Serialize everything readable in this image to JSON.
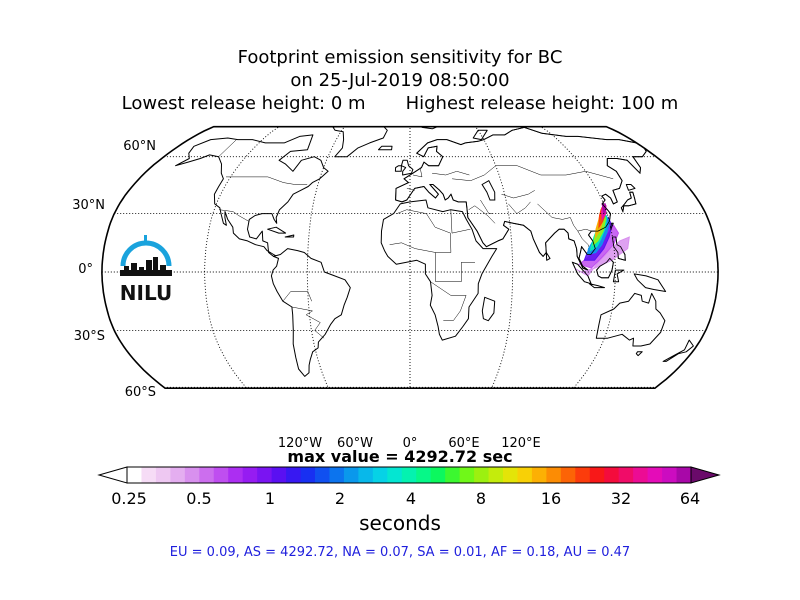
{
  "title": {
    "line1": "Footprint emission sensitivity for BC",
    "line2": "on 25-Jul-2019 08:50:00",
    "line3": "Lowest release height: 0 m       Highest release height: 100 m"
  },
  "map": {
    "projection": "robinson",
    "lat_labels": [
      "60°N",
      "30°N",
      "0°",
      "30°S",
      "60°S"
    ],
    "lon_labels": [
      "120°W",
      "60°W",
      "0°",
      "60°E",
      "120°E"
    ],
    "graticule": "dotted",
    "footprint_region": "East and Southeast Asia"
  },
  "logo": {
    "text": "NILU",
    "color": "#1aa3dd"
  },
  "max_value": "max value = 4292.72 sec",
  "colorbar": {
    "ticks": [
      "0.25",
      "0.5",
      "1",
      "2",
      "4",
      "8",
      "16",
      "32",
      "64"
    ],
    "units": "seconds",
    "extend": "both",
    "colors": [
      "#ffffff",
      "#f6dcf6",
      "#eec8f2",
      "#e4aef0",
      "#d890ee",
      "#cc6eee",
      "#bf4ef0",
      "#ac2ef2",
      "#961cf2",
      "#7a14f2",
      "#5a10f2",
      "#3818f2",
      "#1830f2",
      "#1050f0",
      "#0c74ee",
      "#0a98ec",
      "#08b8ea",
      "#06d2e6",
      "#04e6d2",
      "#04f2b0",
      "#06f888",
      "#0cf85e",
      "#3cf830",
      "#70f818",
      "#9cf010",
      "#c4ec0c",
      "#e4e408",
      "#f8d006",
      "#fcb004",
      "#fc8c04",
      "#fc6406",
      "#fc3c0c",
      "#f81818",
      "#f40c3c",
      "#f00c68",
      "#ec0c94",
      "#e40cb8",
      "#cc0cc0",
      "#a808a8"
    ],
    "end_colors": [
      "#ffffff",
      "#6a0a6a"
    ]
  },
  "regions": "EU = 0.09,  AS = 4292.72,  NA = 0.07,  SA = 0.01,  AF = 0.18,  AU = 0.47"
}
